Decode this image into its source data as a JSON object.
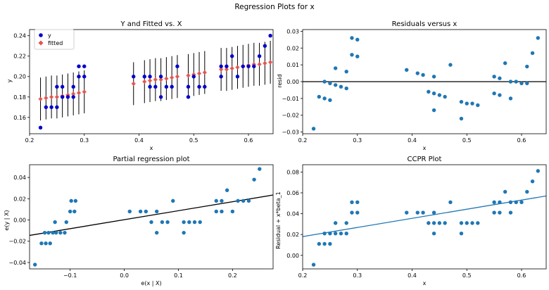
{
  "figure": {
    "title": "Regression Plots for x"
  },
  "chart_data": [
    {
      "type": "scatter",
      "title": "Y and Fitted vs. X",
      "xlabel": "x",
      "ylabel": "y",
      "xlim": [
        0.2,
        0.645
      ],
      "ylim": [
        0.144,
        0.246
      ],
      "xticks": [
        0.2,
        0.3,
        0.4,
        0.5,
        0.6
      ],
      "xticklabels": [
        "0.2",
        "0.3",
        "0.4",
        "0.5",
        "0.6"
      ],
      "yticks": [
        0.16,
        0.18,
        0.2,
        0.22,
        0.24
      ],
      "yticklabels": [
        "0.16",
        "0.18",
        "0.20",
        "0.22",
        "0.24"
      ],
      "legend": {
        "position": "top-left",
        "entries": [
          "y",
          "fitted"
        ]
      },
      "series": [
        {
          "name": "y",
          "color": "#0000cc",
          "marker": "circle",
          "points": [
            [
              0.22,
              0.15
            ],
            [
              0.23,
              0.17
            ],
            [
              0.24,
              0.17
            ],
            [
              0.25,
              0.17
            ],
            [
              0.25,
              0.19
            ],
            [
              0.26,
              0.18
            ],
            [
              0.26,
              0.19
            ],
            [
              0.27,
              0.18
            ],
            [
              0.28,
              0.18
            ],
            [
              0.28,
              0.19
            ],
            [
              0.29,
              0.2
            ],
            [
              0.29,
              0.21
            ],
            [
              0.3,
              0.2
            ],
            [
              0.3,
              0.21
            ],
            [
              0.39,
              0.2
            ],
            [
              0.41,
              0.2
            ],
            [
              0.42,
              0.19
            ],
            [
              0.42,
              0.2
            ],
            [
              0.43,
              0.19
            ],
            [
              0.44,
              0.18
            ],
            [
              0.44,
              0.2
            ],
            [
              0.45,
              0.19
            ],
            [
              0.46,
              0.19
            ],
            [
              0.47,
              0.21
            ],
            [
              0.49,
              0.18
            ],
            [
              0.49,
              0.19
            ],
            [
              0.5,
              0.2
            ],
            [
              0.51,
              0.19
            ],
            [
              0.52,
              0.19
            ],
            [
              0.55,
              0.2
            ],
            [
              0.55,
              0.21
            ],
            [
              0.56,
              0.21
            ],
            [
              0.57,
              0.22
            ],
            [
              0.58,
              0.2
            ],
            [
              0.59,
              0.21
            ],
            [
              0.6,
              0.21
            ],
            [
              0.61,
              0.21
            ],
            [
              0.62,
              0.22
            ],
            [
              0.63,
              0.23
            ],
            [
              0.64,
              0.24
            ]
          ]
        },
        {
          "name": "fitted",
          "color": "#e8524a",
          "marker": "diamond",
          "points": [
            [
              0.22,
              0.178
            ],
            [
              0.23,
              0.179
            ],
            [
              0.24,
              0.18
            ],
            [
              0.25,
              0.18
            ],
            [
              0.26,
              0.181
            ],
            [
              0.27,
              0.182
            ],
            [
              0.28,
              0.183
            ],
            [
              0.29,
              0.184
            ],
            [
              0.3,
              0.185
            ],
            [
              0.39,
              0.193
            ],
            [
              0.41,
              0.195
            ],
            [
              0.42,
              0.196
            ],
            [
              0.43,
              0.197
            ],
            [
              0.44,
              0.197
            ],
            [
              0.45,
              0.198
            ],
            [
              0.46,
              0.199
            ],
            [
              0.47,
              0.2
            ],
            [
              0.49,
              0.201
            ],
            [
              0.5,
              0.202
            ],
            [
              0.51,
              0.203
            ],
            [
              0.52,
              0.204
            ],
            [
              0.55,
              0.207
            ],
            [
              0.56,
              0.207
            ],
            [
              0.57,
              0.208
            ],
            [
              0.58,
              0.209
            ],
            [
              0.59,
              0.21
            ],
            [
              0.6,
              0.211
            ],
            [
              0.61,
              0.212
            ],
            [
              0.62,
              0.212
            ],
            [
              0.63,
              0.213
            ],
            [
              0.64,
              0.214
            ]
          ]
        }
      ],
      "error_bar_halfwidth": 0.021
    },
    {
      "type": "scatter",
      "title": "Residuals versus x",
      "xlabel": "x",
      "ylabel": "resid",
      "xlim": [
        0.2,
        0.645
      ],
      "ylim": [
        -0.031,
        0.031
      ],
      "xticks": [
        0.2,
        0.3,
        0.4,
        0.5,
        0.6
      ],
      "xticklabels": [
        "0.2",
        "0.3",
        "0.4",
        "0.5",
        "0.6"
      ],
      "yticks": [
        -0.03,
        -0.02,
        -0.01,
        0.0,
        0.01,
        0.02,
        0.03
      ],
      "yticklabels": [
        "−0.03",
        "−0.02",
        "−0.01",
        "0.00",
        "0.01",
        "0.02",
        "0.03"
      ],
      "hline": 0.0,
      "color": "#1f77b4",
      "points": [
        [
          0.22,
          -0.028
        ],
        [
          0.23,
          -0.009
        ],
        [
          0.24,
          -0.01
        ],
        [
          0.24,
          0.0
        ],
        [
          0.25,
          -0.011
        ],
        [
          0.25,
          -0.001
        ],
        [
          0.26,
          0.008
        ],
        [
          0.26,
          -0.002
        ],
        [
          0.27,
          -0.003
        ],
        [
          0.28,
          -0.004
        ],
        [
          0.28,
          0.006
        ],
        [
          0.29,
          0.016
        ],
        [
          0.29,
          0.026
        ],
        [
          0.3,
          0.015
        ],
        [
          0.3,
          0.025
        ],
        [
          0.39,
          0.007
        ],
        [
          0.41,
          0.005
        ],
        [
          0.42,
          0.004
        ],
        [
          0.43,
          -0.006
        ],
        [
          0.44,
          -0.007
        ],
        [
          0.44,
          -0.017
        ],
        [
          0.44,
          0.003
        ],
        [
          0.45,
          -0.008
        ],
        [
          0.46,
          -0.009
        ],
        [
          0.47,
          0.01
        ],
        [
          0.49,
          -0.012
        ],
        [
          0.49,
          -0.022
        ],
        [
          0.5,
          -0.013
        ],
        [
          0.51,
          -0.013
        ],
        [
          0.52,
          -0.014
        ],
        [
          0.55,
          0.003
        ],
        [
          0.55,
          -0.007
        ],
        [
          0.56,
          0.002
        ],
        [
          0.56,
          -0.008
        ],
        [
          0.57,
          0.011
        ],
        [
          0.58,
          -0.01
        ],
        [
          0.58,
          0.0
        ],
        [
          0.59,
          0.0
        ],
        [
          0.6,
          -0.001
        ],
        [
          0.61,
          0.009
        ],
        [
          0.61,
          -0.001
        ],
        [
          0.62,
          0.017
        ],
        [
          0.63,
          0.026
        ]
      ]
    },
    {
      "type": "scatter",
      "title": "Partial regression plot",
      "xlabel": "e(x | X)",
      "ylabel": "e(y | X)",
      "xlim": [
        -0.175,
        0.275
      ],
      "ylim": [
        -0.046,
        0.052
      ],
      "xticks": [
        -0.1,
        0.0,
        0.1,
        0.2
      ],
      "xticklabels": [
        "−0.1",
        "0.0",
        "0.1",
        "0.2"
      ],
      "yticks": [
        -0.04,
        -0.02,
        0.0,
        0.02,
        0.04
      ],
      "yticklabels": [
        "−0.04",
        "−0.02",
        "0.00",
        "0.02",
        "0.04"
      ],
      "fit_line": {
        "x": [
          -0.175,
          0.275
        ],
        "y": [
          -0.0145,
          0.0235
        ],
        "color": "#000000"
      },
      "color": "#1f77b4",
      "points": [
        [
          -0.165,
          -0.042
        ],
        [
          -0.153,
          -0.022
        ],
        [
          -0.147,
          -0.012
        ],
        [
          -0.145,
          -0.022
        ],
        [
          -0.14,
          -0.012
        ],
        [
          -0.137,
          -0.022
        ],
        [
          -0.132,
          -0.012
        ],
        [
          -0.128,
          -0.002
        ],
        [
          -0.126,
          -0.012
        ],
        [
          -0.118,
          -0.012
        ],
        [
          -0.11,
          -0.012
        ],
        [
          -0.107,
          -0.002
        ],
        [
          -0.1,
          0.008
        ],
        [
          -0.098,
          0.018
        ],
        [
          -0.092,
          0.008
        ],
        [
          -0.09,
          0.018
        ],
        [
          0.01,
          0.008
        ],
        [
          0.03,
          0.008
        ],
        [
          0.04,
          0.008
        ],
        [
          0.05,
          -0.002
        ],
        [
          0.06,
          -0.012
        ],
        [
          0.06,
          0.008
        ],
        [
          0.07,
          -0.002
        ],
        [
          0.08,
          -0.002
        ],
        [
          0.09,
          0.018
        ],
        [
          0.11,
          -0.002
        ],
        [
          0.11,
          -0.012
        ],
        [
          0.12,
          -0.002
        ],
        [
          0.13,
          -0.002
        ],
        [
          0.14,
          -0.002
        ],
        [
          0.17,
          0.018
        ],
        [
          0.17,
          0.008
        ],
        [
          0.18,
          0.008
        ],
        [
          0.18,
          0.018
        ],
        [
          0.19,
          0.028
        ],
        [
          0.2,
          0.008
        ],
        [
          0.21,
          0.018
        ],
        [
          0.22,
          0.018
        ],
        [
          0.23,
          0.018
        ],
        [
          0.24,
          0.038
        ],
        [
          0.25,
          0.048
        ]
      ]
    },
    {
      "type": "scatter",
      "title": "CCPR Plot",
      "xlabel": "x",
      "ylabel": "Residual + x*beta_1",
      "xlim": [
        0.2,
        0.645
      ],
      "ylim": [
        -0.013,
        0.087
      ],
      "xticks": [
        0.2,
        0.3,
        0.4,
        0.5,
        0.6
      ],
      "xticklabels": [
        "0.2",
        "0.3",
        "0.4",
        "0.5",
        "0.6"
      ],
      "yticks": [
        0.0,
        0.02,
        0.04,
        0.06,
        0.08
      ],
      "yticklabels": [
        "0.00",
        "0.02",
        "0.04",
        "0.06",
        "0.08"
      ],
      "fit_line": {
        "x": [
          0.2,
          0.645
        ],
        "y": [
          0.018,
          0.057
        ],
        "color": "#1f77b4"
      },
      "color": "#1f77b4",
      "points": [
        [
          0.22,
          -0.009
        ],
        [
          0.23,
          0.011
        ],
        [
          0.24,
          0.011
        ],
        [
          0.24,
          0.021
        ],
        [
          0.25,
          0.011
        ],
        [
          0.25,
          0.021
        ],
        [
          0.26,
          0.021
        ],
        [
          0.26,
          0.031
        ],
        [
          0.27,
          0.021
        ],
        [
          0.28,
          0.021
        ],
        [
          0.28,
          0.031
        ],
        [
          0.29,
          0.041
        ],
        [
          0.29,
          0.051
        ],
        [
          0.3,
          0.041
        ],
        [
          0.3,
          0.051
        ],
        [
          0.39,
          0.041
        ],
        [
          0.41,
          0.041
        ],
        [
          0.42,
          0.041
        ],
        [
          0.43,
          0.031
        ],
        [
          0.44,
          0.021
        ],
        [
          0.44,
          0.031
        ],
        [
          0.44,
          0.041
        ],
        [
          0.45,
          0.031
        ],
        [
          0.46,
          0.031
        ],
        [
          0.47,
          0.051
        ],
        [
          0.49,
          0.021
        ],
        [
          0.49,
          0.031
        ],
        [
          0.5,
          0.031
        ],
        [
          0.51,
          0.031
        ],
        [
          0.52,
          0.031
        ],
        [
          0.55,
          0.041
        ],
        [
          0.55,
          0.051
        ],
        [
          0.56,
          0.041
        ],
        [
          0.56,
          0.051
        ],
        [
          0.57,
          0.061
        ],
        [
          0.58,
          0.041
        ],
        [
          0.58,
          0.051
        ],
        [
          0.59,
          0.051
        ],
        [
          0.6,
          0.051
        ],
        [
          0.61,
          0.061
        ],
        [
          0.62,
          0.071
        ],
        [
          0.63,
          0.081
        ]
      ]
    }
  ]
}
